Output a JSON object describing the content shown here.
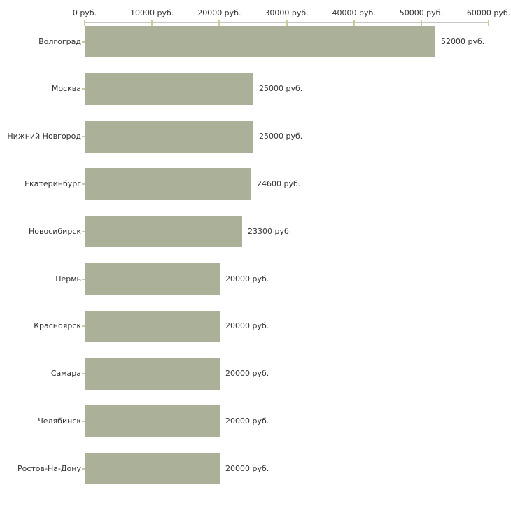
{
  "chart_data": {
    "type": "bar",
    "orientation": "horizontal",
    "title": "",
    "xlabel": "",
    "ylabel": "",
    "categories": [
      "Волгоград",
      "Москва",
      "Нижний Новгород",
      "Екатеринбург",
      "Новосибирск",
      "Пермь",
      "Красноярск",
      "Самара",
      "Челябинск",
      "Ростов-На-Дону"
    ],
    "values": [
      52000,
      25000,
      25000,
      24600,
      23300,
      20000,
      20000,
      20000,
      20000,
      20000
    ],
    "value_labels": [
      "52000 руб.",
      "25000 руб.",
      "25000 руб.",
      "24600 руб.",
      "23300 руб.",
      "20000 руб.",
      "20000 руб.",
      "20000 руб.",
      "20000 руб.",
      "20000 руб."
    ],
    "x_axis": {
      "position": "top",
      "min": 0,
      "max": 60000,
      "tick_values": [
        0,
        10000,
        20000,
        30000,
        40000,
        50000,
        60000
      ],
      "tick_labels": [
        "0 руб.",
        "10000 руб.",
        "20000 руб.",
        "30000 руб.",
        "40000 руб.",
        "50000 руб.",
        "60000 руб."
      ]
    },
    "legend": "none",
    "grid": "off",
    "colors": {
      "bar": "#abb199",
      "axis_line": "#c6c6c6",
      "x_tick": "#cccc99",
      "y_tick": "#c9c9a3",
      "text": "#333333",
      "background": "#ffffff"
    }
  }
}
